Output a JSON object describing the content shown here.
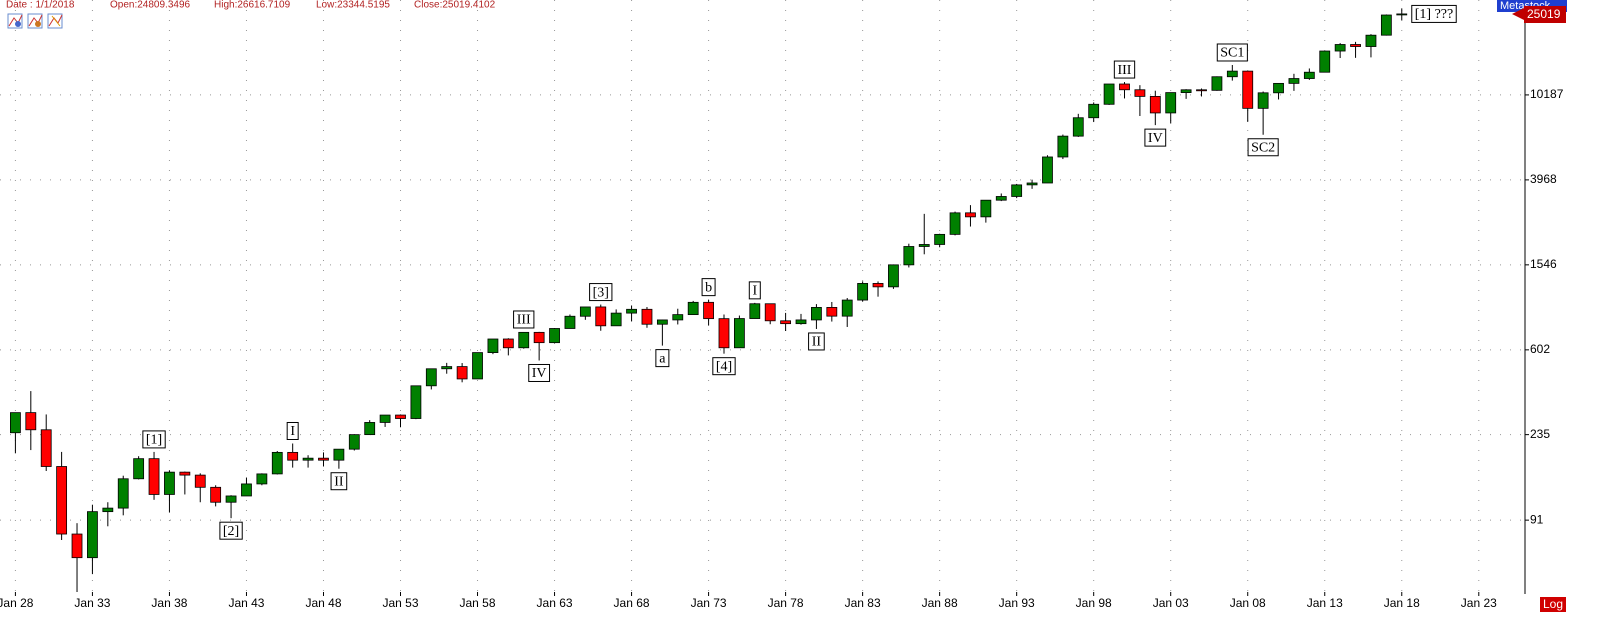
{
  "header": {
    "date": "Date : 1/1/2018",
    "open": "Open:24809.3496",
    "high": "High:26616.7109",
    "low": "Low:23344.5195",
    "close": "Close:25019.4102",
    "brand": "Metastock",
    "last_price": "25019",
    "scale_button": "Log"
  },
  "chart_data": {
    "type": "candlestick",
    "log_scale": true,
    "grid": true,
    "up_color": "#008000",
    "down_color": "#ff0000",
    "x": [
      1928,
      1929,
      1930,
      1931,
      1932,
      1933,
      1934,
      1935,
      1936,
      1937,
      1938,
      1939,
      1940,
      1941,
      1942,
      1943,
      1944,
      1945,
      1946,
      1947,
      1948,
      1949,
      1950,
      1951,
      1952,
      1953,
      1954,
      1955,
      1956,
      1957,
      1958,
      1959,
      1960,
      1961,
      1962,
      1963,
      1964,
      1965,
      1966,
      1967,
      1968,
      1969,
      1970,
      1971,
      1972,
      1973,
      1974,
      1975,
      1976,
      1977,
      1978,
      1979,
      1980,
      1981,
      1982,
      1983,
      1984,
      1985,
      1986,
      1987,
      1988,
      1989,
      1990,
      1991,
      1992,
      1993,
      1994,
      1995,
      1996,
      1997,
      1998,
      1999,
      2000,
      2001,
      2002,
      2003,
      2004,
      2005,
      2006,
      2007,
      2008,
      2009,
      2010,
      2011,
      2012,
      2013,
      2014,
      2015,
      2016,
      2017,
      2018
    ],
    "open": [
      240,
      300,
      248,
      165,
      78,
      60,
      100,
      104,
      144,
      180,
      121,
      155,
      150,
      131,
      111,
      119,
      136,
      152,
      193,
      177,
      181,
      177,
      200,
      235,
      269,
      292,
      281,
      404,
      488,
      500,
      436,
      584,
      679,
      616,
      731,
      652,
      763,
      874,
      969,
      786,
      905,
      944,
      800,
      839,
      890,
      1020,
      851,
      616,
      852,
      1004,
      831,
      805,
      839,
      964,
      875,
      1046,
      1258,
      1211,
      1546,
      1895,
      1938,
      2168,
      2753,
      2633,
      3168,
      3301,
      3754,
      3834,
      5117,
      6448,
      7908,
      9181,
      11497,
      10787,
      10021,
      8341,
      10453,
      10783,
      10717,
      12463,
      13264,
      8776,
      10428,
      11577,
      12217,
      13104,
      16576,
      17823,
      17425,
      19762,
      24809.3496
    ],
    "high": [
      300,
      381,
      294,
      194,
      88,
      108,
      111,
      149,
      185,
      194,
      158,
      156,
      153,
      134,
      120,
      146,
      153,
      196,
      213,
      187,
      193,
      200,
      236,
      276,
      292,
      294,
      404,
      488,
      521,
      520,
      584,
      679,
      685,
      734,
      735,
      767,
      891,
      969,
      995,
      943,
      985,
      968,
      842,
      950,
      1036,
      1051,
      891,
      881,
      1014,
      1004,
      907,
      897,
      1000,
      1024,
      1070,
      1287,
      1286,
      1553,
      1955,
      2722,
      2183,
      2791,
      2999,
      3168,
      3413,
      3794,
      3978,
      5216,
      6560,
      8259,
      9374,
      11497,
      11750,
      11350,
      10673,
      10453,
      10854,
      10940,
      12510,
      14198,
      13279,
      10580,
      11625,
      12876,
      13661,
      16588,
      18103,
      18351,
      19987,
      24876,
      26616.7109
    ],
    "low": [
      191,
      198,
      157,
      73,
      41,
      50,
      85,
      96,
      143,
      114,
      99,
      121,
      111,
      106,
      93,
      119,
      134,
      151,
      163,
      163,
      165,
      161,
      197,
      235,
      256,
      255,
      279,
      388,
      462,
      420,
      436,
      574,
      566,
      610,
      535,
      646,
      763,
      840,
      744,
      786,
      825,
      769,
      631,
      798,
      889,
      788,
      577,
      616,
      852,
      800,
      742,
      796,
      759,
      824,
      776,
      1027,
      1086,
      1184,
      1502,
      1738,
      1879,
      2144,
      2365,
      2470,
      3136,
      3241,
      3593,
      3832,
      5000,
      6391,
      7539,
      9120,
      9796,
      8062,
      7286,
      7417,
      9750,
      10012,
      10667,
      11939,
      7552,
      6547,
      9686,
      10655,
      12035,
      13104,
      15340,
      15370,
      15450,
      19677,
      23344.5195
    ],
    "close": [
      300,
      248,
      165,
      78,
      60,
      100,
      104,
      144,
      180,
      121,
      155,
      150,
      131,
      111,
      119,
      136,
      152,
      193,
      177,
      181,
      177,
      200,
      235,
      269,
      292,
      281,
      404,
      488,
      500,
      436,
      584,
      679,
      616,
      731,
      652,
      763,
      874,
      969,
      786,
      905,
      944,
      800,
      839,
      890,
      1020,
      851,
      616,
      852,
      1004,
      831,
      805,
      839,
      964,
      875,
      1046,
      1258,
      1211,
      1546,
      1895,
      1938,
      2168,
      2753,
      2633,
      3168,
      3301,
      3754,
      3834,
      5117,
      6448,
      7908,
      9181,
      11497,
      10787,
      10021,
      8341,
      10453,
      10783,
      10717,
      12463,
      13264,
      8776,
      10428,
      11577,
      12217,
      13104,
      16576,
      17823,
      17425,
      19762,
      24719,
      25019.4102
    ],
    "xlim": [
      1927,
      2026
    ],
    "xticks": [
      {
        "value": 1928,
        "label": "Jan 28"
      },
      {
        "value": 1933,
        "label": "Jan 33"
      },
      {
        "value": 1938,
        "label": "Jan 38"
      },
      {
        "value": 1943,
        "label": "Jan 43"
      },
      {
        "value": 1948,
        "label": "Jan 48"
      },
      {
        "value": 1953,
        "label": "Jan 53"
      },
      {
        "value": 1958,
        "label": "Jan 58"
      },
      {
        "value": 1963,
        "label": "Jan 63"
      },
      {
        "value": 1968,
        "label": "Jan 68"
      },
      {
        "value": 1973,
        "label": "Jan 73"
      },
      {
        "value": 1978,
        "label": "Jan 78"
      },
      {
        "value": 1983,
        "label": "Jan 83"
      },
      {
        "value": 1988,
        "label": "Jan 88"
      },
      {
        "value": 1993,
        "label": "Jan 93"
      },
      {
        "value": 1998,
        "label": "Jan 98"
      },
      {
        "value": 2003,
        "label": "Jan 03"
      },
      {
        "value": 2008,
        "label": "Jan 08"
      },
      {
        "value": 2013,
        "label": "Jan 13"
      },
      {
        "value": 2018,
        "label": "Jan 18"
      },
      {
        "value": 2023,
        "label": "Jan 23"
      }
    ],
    "ylim": [
      41,
      29200
    ],
    "yticks": [
      91,
      235,
      602,
      1546,
      3968,
      10187
    ],
    "annotations": [
      {
        "label": "[1]",
        "x": 1937
      },
      {
        "label": "[2]",
        "x": 1942
      },
      {
        "label": "I",
        "x": 1946
      },
      {
        "label": "II",
        "x": 1949
      },
      {
        "label": "III",
        "x": 1961
      },
      {
        "label": "IV",
        "x": 1962
      },
      {
        "label": "[3]",
        "x": 1966
      },
      {
        "label": "a",
        "x": 1970
      },
      {
        "label": "b",
        "x": 1973
      },
      {
        "label": "[4]",
        "x": 1974
      },
      {
        "label": "I",
        "x": 1976
      },
      {
        "label": "II",
        "x": 1980
      },
      {
        "label": "III",
        "x": 2000
      },
      {
        "label": "IV",
        "x": 2002
      },
      {
        "label": "SC1",
        "x": 2007
      },
      {
        "label": "SC2",
        "x": 2009
      },
      {
        "label": "[1] ???",
        "x": 2018
      }
    ]
  }
}
